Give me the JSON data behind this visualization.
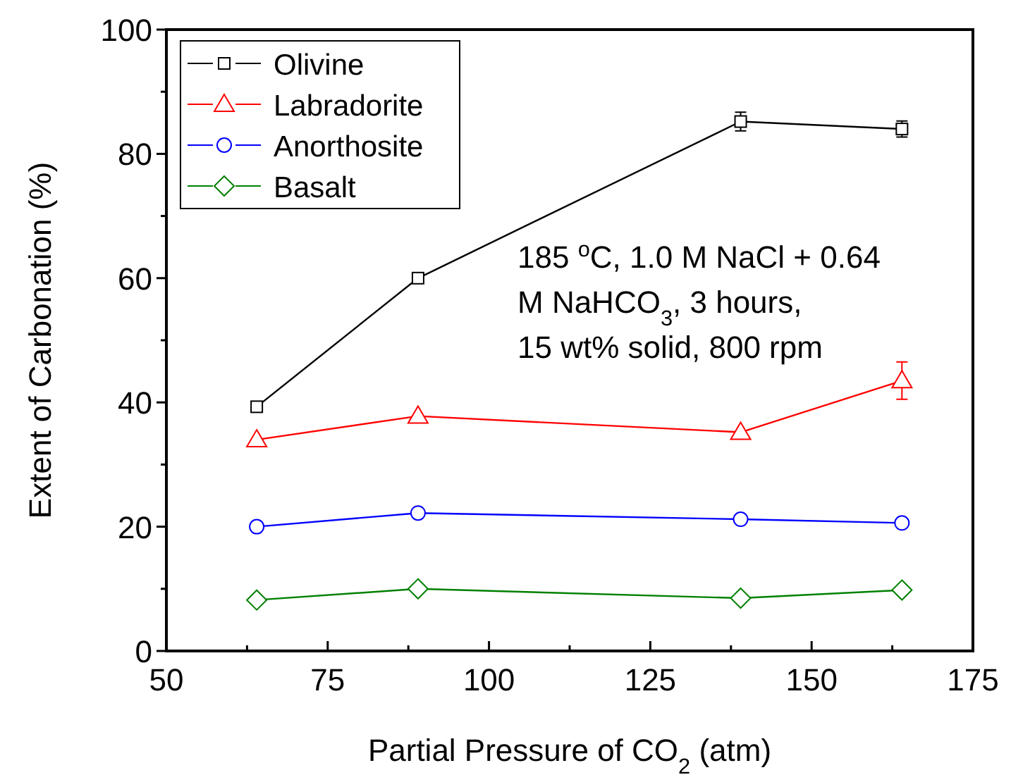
{
  "chart_data": {
    "type": "line",
    "xlabel": "Partial Pressure of CO$_{2}$ (atm)",
    "ylabel": "Extent of Carbonation (%)",
    "x": [
      64,
      89,
      139,
      164
    ],
    "xlim": [
      50,
      175
    ],
    "xticks": [
      50,
      {
        "value": 62.5,
        "label": null
      },
      75,
      {
        "value": 87.5,
        "label": null
      },
      100,
      {
        "value": 112.5,
        "label": null
      },
      125,
      {
        "value": 137.5,
        "label": null
      },
      150,
      {
        "value": 162.5,
        "label": null
      },
      175
    ],
    "ylim": [
      0,
      100
    ],
    "yticks": [
      0,
      {
        "value": 10,
        "label": null
      },
      20,
      {
        "value": 30,
        "label": null
      },
      40,
      {
        "value": 50,
        "label": null
      },
      60,
      {
        "value": 70,
        "label": null
      },
      80,
      {
        "value": 90,
        "label": null
      },
      100
    ],
    "grid": false,
    "legend": "top left",
    "line_style": "solid",
    "series": [
      {
        "name": "Olivine",
        "color": "#000000",
        "marker": "square",
        "values": [
          39.3,
          60,
          85.2,
          84
        ],
        "errors": [
          null,
          null,
          1.5,
          1.3
        ]
      },
      {
        "name": "Labradorite",
        "color": "#ff0000",
        "marker": "triangle",
        "values": [
          34,
          37.8,
          35.2,
          43.5
        ],
        "errors": [
          null,
          null,
          null,
          3
        ]
      },
      {
        "name": "Anorthosite",
        "color": "#0000ff",
        "marker": "circle",
        "values": [
          20,
          22.2,
          21.2,
          20.6
        ]
      },
      {
        "name": "Basalt",
        "color": "#008000",
        "marker": "diamond",
        "values": [
          8.2,
          10,
          8.5,
          9.8
        ]
      }
    ],
    "annotations": [
      "185 $^{o}$C, 1.0 M NaCl + 0.64\nM NaHCO$_{3}$,  3 hours,\n15 wt% solid, 800 rpm"
    ]
  }
}
